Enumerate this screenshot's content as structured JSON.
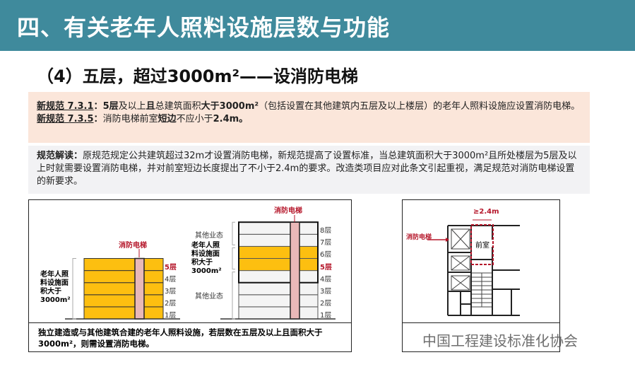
{
  "header": {
    "title": "四、有关老年人照料设施层数与功能"
  },
  "subtitle": "（4）五层，超过3000m²——设消防电梯",
  "rule": {
    "r1_code": "新规范  7.3.1",
    "r1_sep": "：",
    "r1_a": "5层",
    "r1_b": "及以上",
    "r1_c": "且",
    "r1_d": "总建筑面积",
    "r1_e": "大于3000m²",
    "r1_f": "（包括设置在其他建筑内五层及以上楼层）的老年人照料设施应设置消防电梯。",
    "r2_code": "新规范  7.3.5",
    "r2_sep": "：",
    "r2_a": "消防电梯前室",
    "r2_b": "短边",
    "r2_c": "不应小于",
    "r2_d": "2.4m。"
  },
  "interpretation": {
    "label": "规范解读：",
    "text": "原规范规定公共建筑超过32m才设置消防电梯，新规范提高了设置标准，当总建筑面积大于3000m²且所处楼层为5层及以上时就需要设置消防电梯，并对前室短边长度提出了不小于2.4m的要求。改造类项目应对此条文引起重视，满足规范对消防电梯设置的新要求。"
  },
  "figure_left": {
    "elevator_label": "消防电梯",
    "area_label": "老年人照料设施面积大于3000m²",
    "other_label": "其他业态",
    "floors": [
      "1层",
      "2层",
      "3层",
      "4层",
      "5层",
      "6层",
      "7层",
      "8层"
    ],
    "caption": "独立建造或与其他建筑合建的老年人照料设施，若层数在五层及以上且面积大于3000m²，则需设置消防电梯。"
  },
  "figure_right": {
    "elevator_label": "消防电梯",
    "dimension": "≥2.4m",
    "room": "前室"
  },
  "watermark": "中国工程建设标准化协会",
  "colors": {
    "header": "#3f8a9c",
    "care_floor": "#fdbf10",
    "elevator": "#e9b8b8",
    "accent": "#b5162a"
  }
}
